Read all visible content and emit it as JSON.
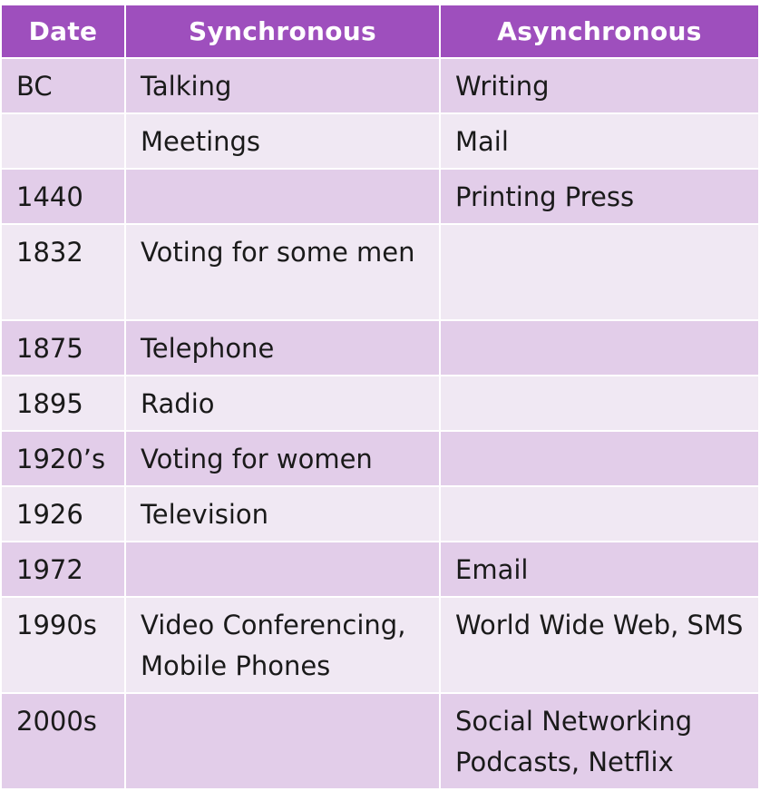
{
  "table": {
    "headers": [
      "Date",
      "Synchronous",
      "Asynchronous"
    ],
    "rows": [
      {
        "date": "BC",
        "sync": "Talking",
        "async": "Writing"
      },
      {
        "date": "",
        "sync": "Meetings",
        "async": "Mail"
      },
      {
        "date": "1440",
        "sync": "",
        "async": "Printing Press"
      },
      {
        "date": "1832",
        "sync": "Voting for some men",
        "async": ""
      },
      {
        "date": "1875",
        "sync": "Telephone",
        "async": ""
      },
      {
        "date": "1895",
        "sync": "Radio",
        "async": ""
      },
      {
        "date": "1920’s",
        "sync": "Voting for women",
        "async": ""
      },
      {
        "date": "1926",
        "sync": "Television",
        "async": ""
      },
      {
        "date": "1972",
        "sync": "",
        "async": "Email"
      },
      {
        "date": "1990s",
        "sync": "Video Conferencing, Mobile Phones",
        "async": "World Wide Web, SMS"
      },
      {
        "date": "2000s",
        "sync": "",
        "async": "Social Networking Podcasts, Netflix"
      }
    ]
  },
  "colors": {
    "header_bg": "#9e4fbd",
    "row_dark": "#e2cde9",
    "row_light": "#f0e8f3",
    "header_text": "#ffffff"
  }
}
